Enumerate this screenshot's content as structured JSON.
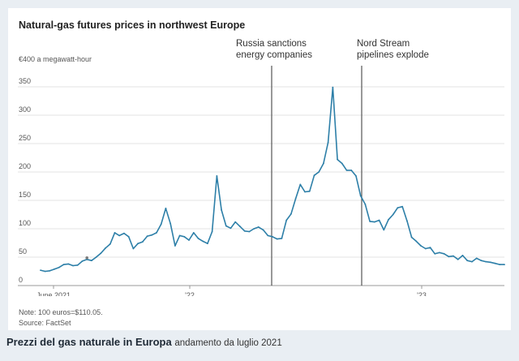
{
  "chart_data": {
    "type": "line",
    "title": "Natural-gas futures prices in northwest Europe",
    "ylabel": "€400 a megawatt-hour",
    "ylim": [
      0,
      400
    ],
    "y_ticks": [
      0,
      50,
      100,
      150,
      200,
      250,
      300,
      350
    ],
    "x_tick_labels": [
      "June 2021",
      "'22",
      "'23"
    ],
    "grid": true,
    "colors": {
      "line": "#2d7fa8",
      "marker": "#7a7a7a",
      "grid": "#e3e3e3"
    },
    "annotations": [
      {
        "label_lines": [
          "Russia sanctions",
          "energy companies"
        ],
        "x": 83.5
      },
      {
        "label_lines": [
          "Nord Stream",
          "pipelines explode"
        ],
        "x": 115.5
      }
    ],
    "series": [
      {
        "values": [
          27,
          25,
          26,
          29,
          32,
          37,
          38,
          35,
          36,
          43,
          46,
          44,
          50,
          57,
          66,
          73,
          93,
          88,
          92,
          86,
          65,
          74,
          77,
          87,
          89,
          93,
          108,
          136,
          109,
          70,
          88,
          86,
          80,
          93,
          83,
          78,
          74,
          95,
          193,
          133,
          105,
          101,
          112,
          104,
          96,
          95,
          100,
          103,
          98,
          88,
          86,
          82,
          83,
          115,
          126,
          153,
          178,
          165,
          166,
          194,
          200,
          215,
          252,
          349,
          222,
          215,
          203,
          203,
          193,
          158,
          143,
          113,
          112,
          115,
          98,
          116,
          125,
          137,
          139,
          114,
          85,
          78,
          70,
          65,
          67,
          56,
          58,
          56,
          51,
          52,
          46,
          53,
          44,
          42,
          48,
          44,
          42,
          41,
          39,
          37,
          37
        ]
      }
    ]
  },
  "note": "Note: 100 euros=$110.05.",
  "source": "Source: FactSet",
  "caption": {
    "main": "Prezzi del gas naturale in Europa",
    "sub": "andamento da luglio 2021"
  }
}
